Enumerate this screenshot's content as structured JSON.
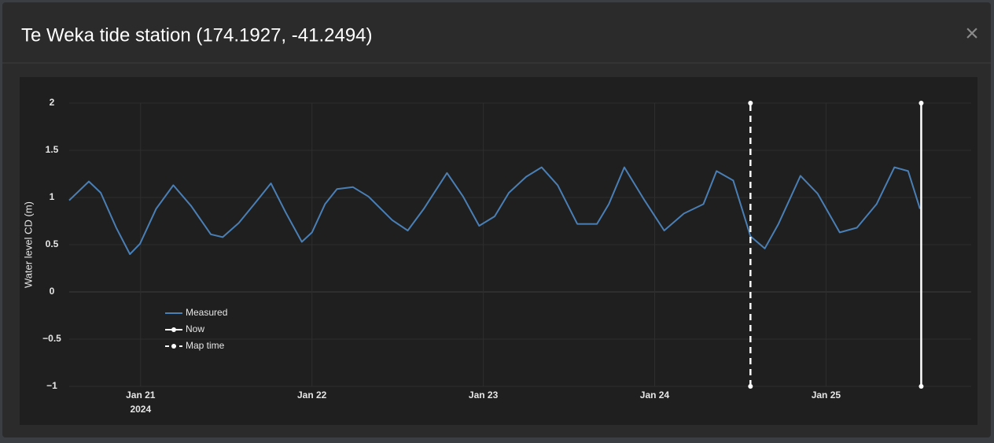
{
  "header": {
    "title": "Te Weka tide station (174.1927, -41.2494)",
    "close": "×"
  },
  "chart_data": {
    "type": "line",
    "ylabel": "Water level CD (m)",
    "x": [
      "2024-01-20T14:00",
      "2024-01-20T16:45",
      "2024-01-20T18:25",
      "2024-01-20T20:35",
      "2024-01-20T22:30",
      "2024-01-20T23:55",
      "2024-01-21T02:10",
      "2024-01-21T04:35",
      "2024-01-21T07:05",
      "2024-01-21T09:50",
      "2024-01-21T11:30",
      "2024-01-21T13:45",
      "2024-01-21T15:55",
      "2024-01-21T18:15",
      "2024-01-21T20:20",
      "2024-01-21T22:35",
      "2024-01-22T00:00",
      "2024-01-22T01:50",
      "2024-01-22T03:30",
      "2024-01-22T05:45",
      "2024-01-22T07:55",
      "2024-01-22T11:15",
      "2024-01-22T13:25",
      "2024-01-22T15:40",
      "2024-01-22T18:55",
      "2024-01-22T21:10",
      "2024-01-22T23:25",
      "2024-01-23T01:35",
      "2024-01-23T03:35",
      "2024-01-23T06:00",
      "2024-01-23T08:10",
      "2024-01-23T10:25",
      "2024-01-23T13:10",
      "2024-01-23T15:55",
      "2024-01-23T17:35",
      "2024-01-23T19:45",
      "2024-01-23T22:35",
      "2024-01-24T01:20",
      "2024-01-24T04:05",
      "2024-01-24T06:50",
      "2024-01-24T08:40",
      "2024-01-24T11:00",
      "2024-01-24T13:25",
      "2024-01-24T15:25",
      "2024-01-24T17:20",
      "2024-01-24T20:25",
      "2024-01-24T22:50",
      "2024-01-25T01:55",
      "2024-01-25T04:20",
      "2024-01-25T07:05",
      "2024-01-25T09:35",
      "2024-01-25T11:30",
      "2024-01-25T13:10"
    ],
    "series": [
      {
        "name": "Measured",
        "color": "#4a7fb5",
        "values": [
          0.97,
          1.17,
          1.05,
          0.68,
          0.4,
          0.51,
          0.88,
          1.13,
          0.91,
          0.61,
          0.58,
          0.73,
          0.93,
          1.15,
          0.84,
          0.53,
          0.63,
          0.93,
          1.09,
          1.11,
          1.01,
          0.76,
          0.65,
          0.88,
          1.26,
          1.01,
          0.7,
          0.8,
          1.05,
          1.22,
          1.32,
          1.13,
          0.72,
          0.72,
          0.93,
          1.32,
          0.97,
          0.65,
          0.83,
          0.93,
          1.28,
          1.18,
          0.59,
          0.46,
          0.72,
          1.23,
          1.04,
          0.63,
          0.68,
          0.93,
          1.32,
          1.28,
          0.88
        ]
      }
    ],
    "vertical_lines": [
      {
        "name": "Now",
        "x": "2024-01-25T13:20",
        "style": "solid",
        "color": "#ffffff"
      },
      {
        "name": "Map time",
        "x": "2024-01-24T13:25",
        "style": "dashed",
        "color": "#ffffff"
      }
    ],
    "xlim": [
      "2024-01-20T14:00",
      "2024-01-25T20:20"
    ],
    "xticks": [
      {
        "value": "2024-01-21T00:00",
        "label": "Jan 21",
        "sublabel": "2024"
      },
      {
        "value": "2024-01-22T00:00",
        "label": "Jan 22"
      },
      {
        "value": "2024-01-23T00:00",
        "label": "Jan 23"
      },
      {
        "value": "2024-01-24T00:00",
        "label": "Jan 24"
      },
      {
        "value": "2024-01-25T00:00",
        "label": "Jan 25"
      }
    ],
    "ylim": [
      -1,
      2
    ],
    "yticks": [
      {
        "value": -1,
        "label": "−1"
      },
      {
        "value": -0.5,
        "label": "−0.5"
      },
      0,
      0.5,
      1,
      1.5,
      2
    ],
    "grid": true,
    "legend": "lower left"
  }
}
